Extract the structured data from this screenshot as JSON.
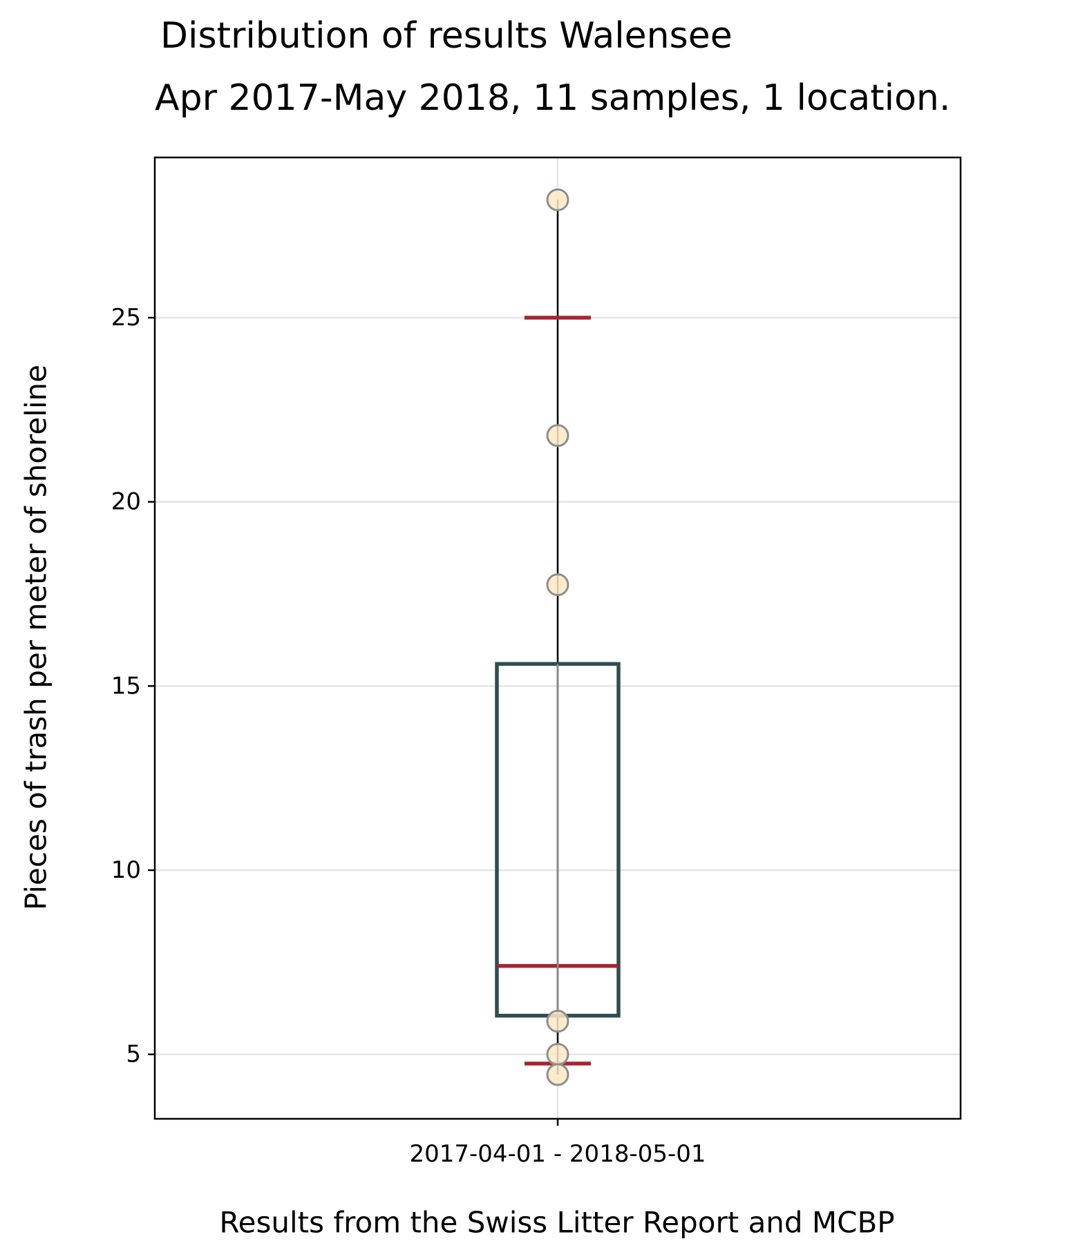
{
  "chart_data": {
    "type": "box",
    "title": "Distribution of results Walensee",
    "subtitle": "Apr 2017-May 2018, 11 samples, 1 location.",
    "ylabel": "Pieces of trash per meter of shoreline",
    "xlabel": "Results from the Swiss Litter Report and MCBP",
    "categories": [
      "2017-04-01 - 2018-05-01"
    ],
    "ylim": [
      3.25,
      29.35
    ],
    "yticks": [
      5,
      10,
      15,
      20,
      25
    ],
    "grid": true,
    "box": {
      "q1": 6.05,
      "median": 7.4,
      "q3": 15.6,
      "whisker_low": 4.45,
      "whisker_high": 28.2,
      "percentile_markers": [
        4.75,
        25.0
      ]
    },
    "points": [
      28.2,
      21.8,
      17.75,
      5.9,
      5.0,
      4.45
    ],
    "colors": {
      "box": "#2f4f4f",
      "median": "#a8242f",
      "percentile": "#a8242f",
      "whisker": "#000000",
      "grid": "#e4e4e4",
      "point_fill": "#fde8c6",
      "point_edge": "#8c9089"
    }
  }
}
